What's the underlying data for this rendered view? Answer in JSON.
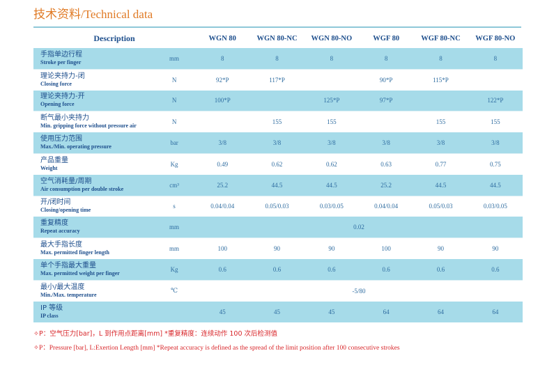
{
  "title": "技术资料/Technical data",
  "table": {
    "header": {
      "description": "Description",
      "models": [
        "WGN 80",
        "WGN 80-NC",
        "WGN 80-NO",
        "WGF 80",
        "WGF 80-NC",
        "WGF 80-NO"
      ]
    },
    "rows": [
      {
        "cn": "手指单边行程",
        "en": "Stroke per finger",
        "unit": "mm",
        "values": [
          "8",
          "8",
          "8",
          "8",
          "8",
          "8"
        ]
      },
      {
        "cn": "理论夹持力-闭",
        "en": "Closing force",
        "unit": "N",
        "values": [
          "92*P",
          "117*P",
          "",
          "90*P",
          "115*P",
          ""
        ]
      },
      {
        "cn": "理论夹持力-开",
        "en": "Opening force",
        "unit": "N",
        "values": [
          "100*P",
          "",
          "125*P",
          "97*P",
          "",
          "122*P"
        ]
      },
      {
        "cn": "断气最小夹持力",
        "en": "Min. gripping force without pressure air",
        "unit": "N",
        "values": [
          "",
          "155",
          "155",
          "",
          "155",
          "155"
        ]
      },
      {
        "cn": "使用压力范围",
        "en": "Max./Min. operating pressure",
        "unit": "bar",
        "values": [
          "3/8",
          "3/8",
          "3/8",
          "3/8",
          "3/8",
          "3/8"
        ]
      },
      {
        "cn": "产品重量",
        "en": "Weight",
        "unit": "Kg",
        "values": [
          "0.49",
          "0.62",
          "0.62",
          "0.63",
          "0.77",
          "0.75"
        ]
      },
      {
        "cn": "空气消耗量/周期",
        "en": "Air consumption per double stroke",
        "unit": "cm³",
        "values": [
          "25.2",
          "44.5",
          "44.5",
          "25.2",
          "44.5",
          "44.5"
        ]
      },
      {
        "cn": "开/闭时间",
        "en": "Closing/opening time",
        "unit": "s",
        "values": [
          "0.04/0.04",
          "0.05/0.03",
          "0.03/0.05",
          "0.04/0.04",
          "0.05/0.03",
          "0.03/0.05"
        ]
      },
      {
        "cn": "重复精度",
        "en": "Repeat accuracy",
        "unit": "mm",
        "span": "0.02"
      },
      {
        "cn": "最大手指长度",
        "en": "Max. permitted finger length",
        "unit": "mm",
        "values": [
          "100",
          "90",
          "90",
          "100",
          "90",
          "90"
        ]
      },
      {
        "cn": "单个手指最大重量",
        "en": "Max. permitted weight per finger",
        "unit": "Kg",
        "values": [
          "0.6",
          "0.6",
          "0.6",
          "0.6",
          "0.6",
          "0.6"
        ]
      },
      {
        "cn": "最小/最大温度",
        "en": "Min./Max. temperature",
        "unit": "℃",
        "span": "-5/80"
      },
      {
        "cn": "IP 等级",
        "en": "IP class",
        "unit": "",
        "values": [
          "45",
          "45",
          "45",
          "64",
          "64",
          "64"
        ]
      }
    ]
  },
  "notes": {
    "cn": "✧P：空气压力[bar]，L 到作用点距离[mm]   *重复精度：连续动作 100 次后检测值",
    "en": "✧P：Pressure [bar], L:Exertion Length [mm]   *Repeat accuracy is defined as the spread of the limit position after 100 consecutive strokes"
  }
}
